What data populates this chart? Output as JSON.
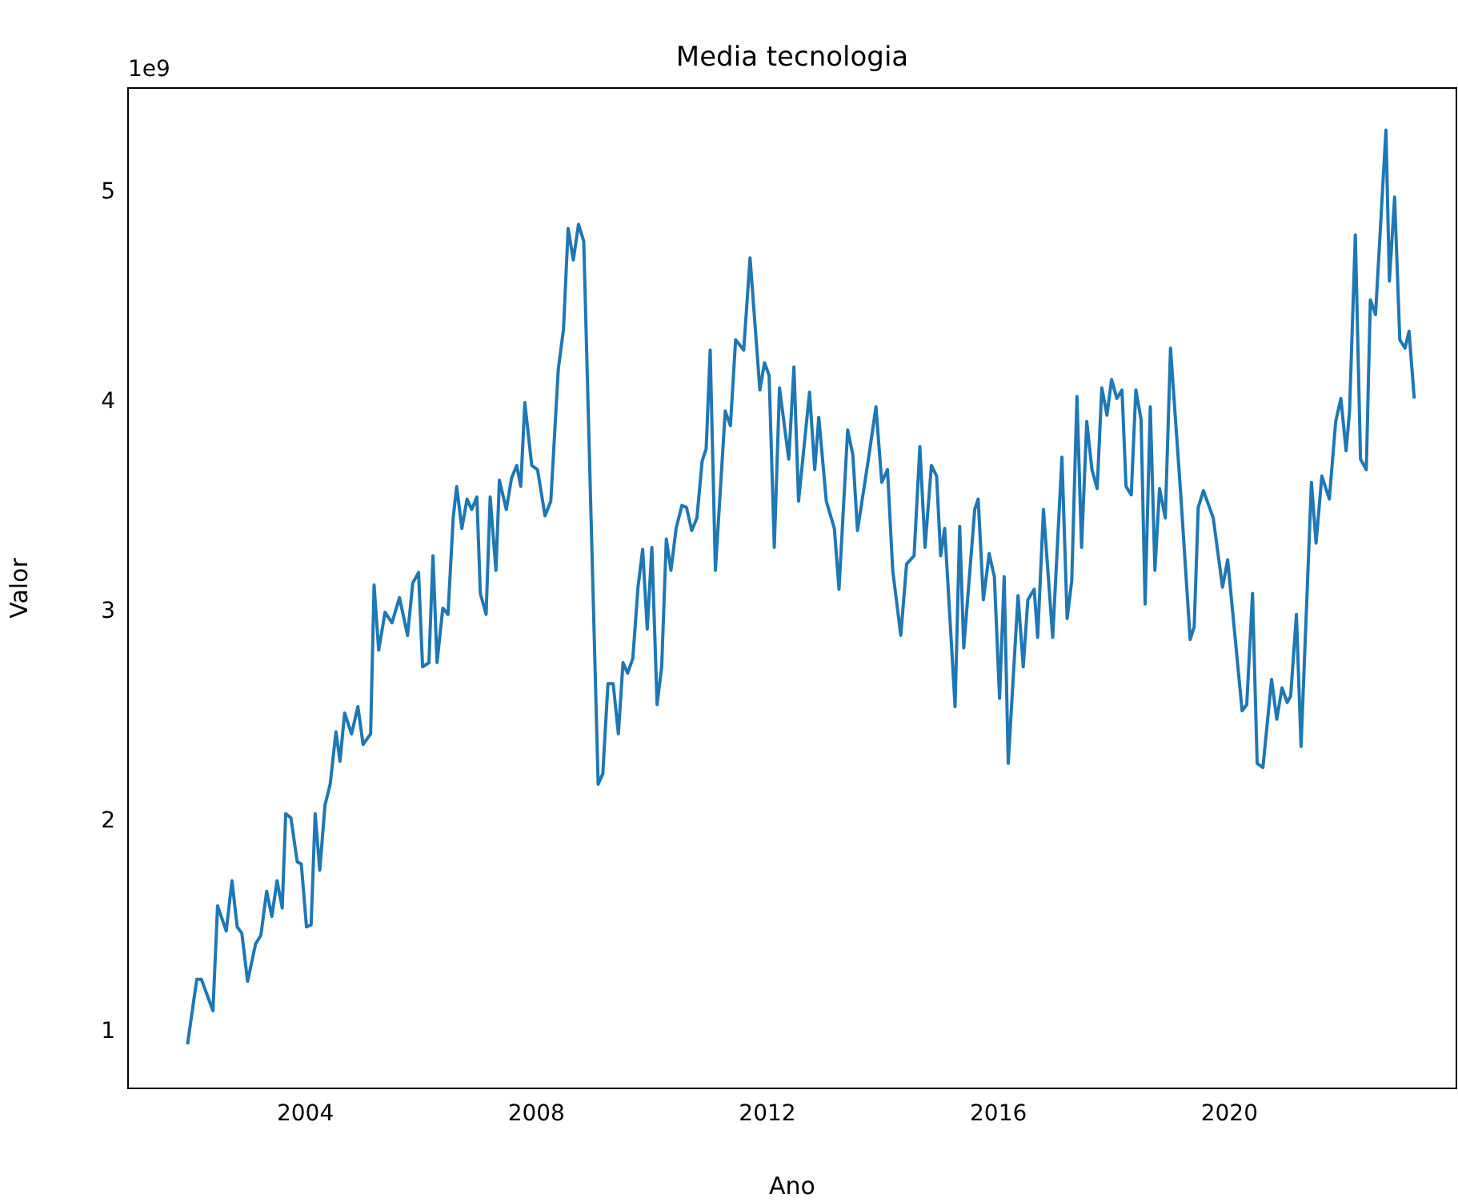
{
  "chart_data": {
    "type": "line",
    "title": "Media tecnologia",
    "xlabel": "Ano",
    "ylabel": "Valor",
    "annotations": [
      "1e9"
    ],
    "x": [
      2001.96,
      2002.12,
      2002.2,
      2002.4,
      2002.48,
      2002.63,
      2002.73,
      2002.82,
      2002.9,
      2003.0,
      2003.14,
      2003.23,
      2003.33,
      2003.42,
      2003.51,
      2003.6,
      2003.66,
      2003.75,
      2003.86,
      2003.93,
      2004.02,
      2004.1,
      2004.17,
      2004.25,
      2004.34,
      2004.43,
      2004.53,
      2004.6,
      2004.68,
      2004.8,
      2004.91,
      2005.0,
      2005.13,
      2005.19,
      2005.27,
      2005.38,
      2005.5,
      2005.63,
      2005.77,
      2005.86,
      2005.96,
      2006.03,
      2006.14,
      2006.21,
      2006.28,
      2006.38,
      2006.47,
      2006.56,
      2006.62,
      2006.71,
      2006.8,
      2006.88,
      2006.97,
      2007.03,
      2007.13,
      2007.2,
      2007.3,
      2007.36,
      2007.48,
      2007.57,
      2007.66,
      2007.73,
      2007.8,
      2007.92,
      2008.02,
      2008.15,
      2008.25,
      2008.38,
      2008.47,
      2008.55,
      2008.64,
      2008.73,
      2008.82,
      2009.07,
      2009.15,
      2009.24,
      2009.33,
      2009.42,
      2009.5,
      2009.58,
      2009.67,
      2009.76,
      2009.84,
      2009.92,
      2010.0,
      2010.09,
      2010.17,
      2010.25,
      2010.33,
      2010.42,
      2010.52,
      2010.6,
      2010.69,
      2010.78,
      2010.87,
      2010.94,
      2011.01,
      2011.1,
      2011.27,
      2011.36,
      2011.45,
      2011.59,
      2011.7,
      2011.87,
      2011.95,
      2012.03,
      2012.12,
      2012.21,
      2012.37,
      2012.46,
      2012.54,
      2012.73,
      2012.82,
      2012.89,
      2013.02,
      2013.16,
      2013.24,
      2013.39,
      2013.48,
      2013.56,
      2013.76,
      2013.88,
      2013.98,
      2014.08,
      2014.17,
      2014.31,
      2014.41,
      2014.54,
      2014.64,
      2014.73,
      2014.84,
      2014.93,
      2015.0,
      2015.07,
      2015.25,
      2015.33,
      2015.4,
      2015.59,
      2015.65,
      2015.74,
      2015.84,
      2015.93,
      2016.02,
      2016.1,
      2016.17,
      2016.34,
      2016.43,
      2016.51,
      2016.62,
      2016.68,
      2016.78,
      2016.94,
      2017.1,
      2017.19,
      2017.27,
      2017.36,
      2017.44,
      2017.53,
      2017.62,
      2017.71,
      2017.79,
      2017.88,
      2017.96,
      2018.05,
      2018.14,
      2018.21,
      2018.3,
      2018.38,
      2018.47,
      2018.54,
      2018.63,
      2018.71,
      2018.79,
      2018.89,
      2018.98,
      2019.16,
      2019.32,
      2019.39,
      2019.46,
      2019.55,
      2019.72,
      2019.88,
      2019.97,
      2020.22,
      2020.3,
      2020.4,
      2020.48,
      2020.58,
      2020.73,
      2020.82,
      2020.91,
      2021.0,
      2021.06,
      2021.16,
      2021.24,
      2021.42,
      2021.5,
      2021.6,
      2021.73,
      2021.84,
      2021.93,
      2022.02,
      2022.08,
      2022.18,
      2022.27,
      2022.37,
      2022.44,
      2022.53,
      2022.71,
      2022.77,
      2022.86,
      2022.95,
      2023.04,
      2023.11,
      2023.2
    ],
    "values": [
      0.94,
      1.25,
      1.25,
      1.1,
      1.6,
      1.48,
      1.72,
      1.5,
      1.47,
      1.24,
      1.42,
      1.46,
      1.67,
      1.55,
      1.72,
      1.59,
      2.04,
      2.02,
      1.81,
      1.8,
      1.5,
      1.51,
      2.04,
      1.77,
      2.08,
      2.18,
      2.43,
      2.29,
      2.52,
      2.42,
      2.55,
      2.37,
      2.42,
      3.13,
      2.82,
      3.0,
      2.95,
      3.07,
      2.89,
      3.14,
      3.19,
      2.74,
      2.76,
      3.27,
      2.76,
      3.02,
      2.99,
      3.45,
      3.6,
      3.4,
      3.54,
      3.49,
      3.55,
      3.09,
      2.99,
      3.55,
      3.2,
      3.63,
      3.49,
      3.64,
      3.7,
      3.6,
      4.0,
      3.7,
      3.68,
      3.46,
      3.53,
      4.16,
      4.35,
      4.83,
      4.68,
      4.85,
      4.77,
      2.18,
      2.23,
      2.66,
      2.66,
      2.42,
      2.76,
      2.71,
      2.78,
      3.12,
      3.3,
      2.92,
      3.31,
      2.56,
      2.74,
      3.35,
      3.2,
      3.4,
      3.51,
      3.5,
      3.39,
      3.45,
      3.72,
      3.78,
      4.25,
      3.2,
      3.96,
      3.89,
      4.3,
      4.25,
      4.69,
      4.06,
      4.19,
      4.13,
      3.31,
      4.07,
      3.73,
      4.17,
      3.53,
      4.05,
      3.68,
      3.93,
      3.53,
      3.4,
      3.11,
      3.87,
      3.75,
      3.39,
      3.75,
      3.98,
      3.62,
      3.68,
      3.2,
      2.89,
      3.23,
      3.27,
      3.79,
      3.31,
      3.7,
      3.65,
      3.27,
      3.4,
      2.55,
      3.41,
      2.83,
      3.49,
      3.54,
      3.06,
      3.28,
      3.17,
      2.59,
      3.17,
      2.28,
      3.08,
      2.74,
      3.06,
      3.11,
      2.88,
      3.49,
      2.88,
      3.74,
      2.97,
      3.15,
      4.03,
      3.31,
      3.91,
      3.68,
      3.59,
      4.07,
      3.94,
      4.11,
      4.02,
      4.06,
      3.6,
      3.56,
      4.06,
      3.92,
      3.04,
      3.98,
      3.2,
      3.59,
      3.45,
      4.26,
      3.55,
      2.87,
      2.93,
      3.5,
      3.58,
      3.45,
      3.12,
      3.25,
      2.53,
      2.56,
      3.09,
      2.28,
      2.26,
      2.68,
      2.49,
      2.64,
      2.57,
      2.6,
      2.99,
      2.36,
      3.62,
      3.33,
      3.65,
      3.54,
      3.91,
      4.02,
      3.77,
      3.96,
      4.8,
      3.73,
      3.68,
      4.49,
      4.42,
      5.3,
      4.58,
      4.98,
      4.3,
      4.26,
      4.34,
      4.02
    ],
    "color": "#1f77b4",
    "xlim": [
      2000.93,
      2023.93
    ],
    "xticks": [
      2004,
      2008,
      2012,
      2016,
      2020
    ],
    "ylim": [
      0.73,
      5.5
    ],
    "yticks": [
      1,
      2,
      3,
      4,
      5
    ],
    "grid": false,
    "legend": false,
    "marker": "none",
    "line_style": "solid"
  }
}
